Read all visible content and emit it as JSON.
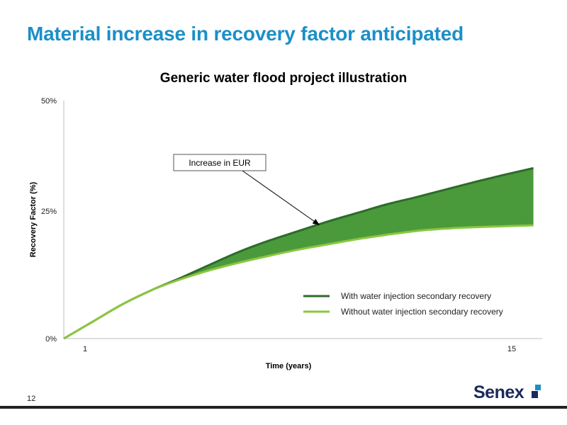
{
  "slide": {
    "title": "Material increase in recovery factor anticipated",
    "page_number": "12",
    "logo_text": "Senex"
  },
  "colors": {
    "title": "#1b8fc9",
    "with_injection": "#2e6b2a",
    "without_injection": "#8cc63f",
    "fill_area": "#4a9a3c"
  },
  "chart_data": {
    "type": "area",
    "title": "Generic water flood project illustration",
    "xlabel": "Time (years)",
    "ylabel": "Recovery Factor (%)",
    "x_ticks": [
      "1",
      "15"
    ],
    "y_ticks": [
      "0%",
      "25%",
      "50%"
    ],
    "xlim": [
      0,
      16.3
    ],
    "ylim": [
      0,
      50
    ],
    "grid": false,
    "legend_position": "bottom-right",
    "series": [
      {
        "name": "With water injection secondary recovery",
        "x": [
          0,
          1,
          2,
          3,
          4,
          5,
          6,
          7,
          8,
          9,
          10,
          11,
          12,
          13,
          14,
          15,
          16
        ],
        "y": [
          0,
          3.6,
          7.2,
          10.2,
          12.8,
          15.6,
          18.3,
          20.6,
          22.6,
          24.6,
          26.4,
          28.2,
          29.7,
          31.3,
          32.9,
          34.4,
          35.8
        ]
      },
      {
        "name": "Without water injection secondary recovery",
        "x": [
          0,
          1,
          2,
          3,
          4,
          5,
          6,
          7,
          8,
          9,
          10,
          11,
          12,
          13,
          14,
          15,
          16
        ],
        "y": [
          0,
          3.6,
          7.2,
          10.2,
          12.5,
          14.4,
          16.0,
          17.4,
          18.7,
          19.8,
          20.9,
          21.8,
          22.6,
          23.1,
          23.4,
          23.6,
          23.8
        ]
      }
    ],
    "annotation": {
      "text": "Increase in EUR",
      "target_x": 8.7,
      "target_y": 23.9
    }
  }
}
